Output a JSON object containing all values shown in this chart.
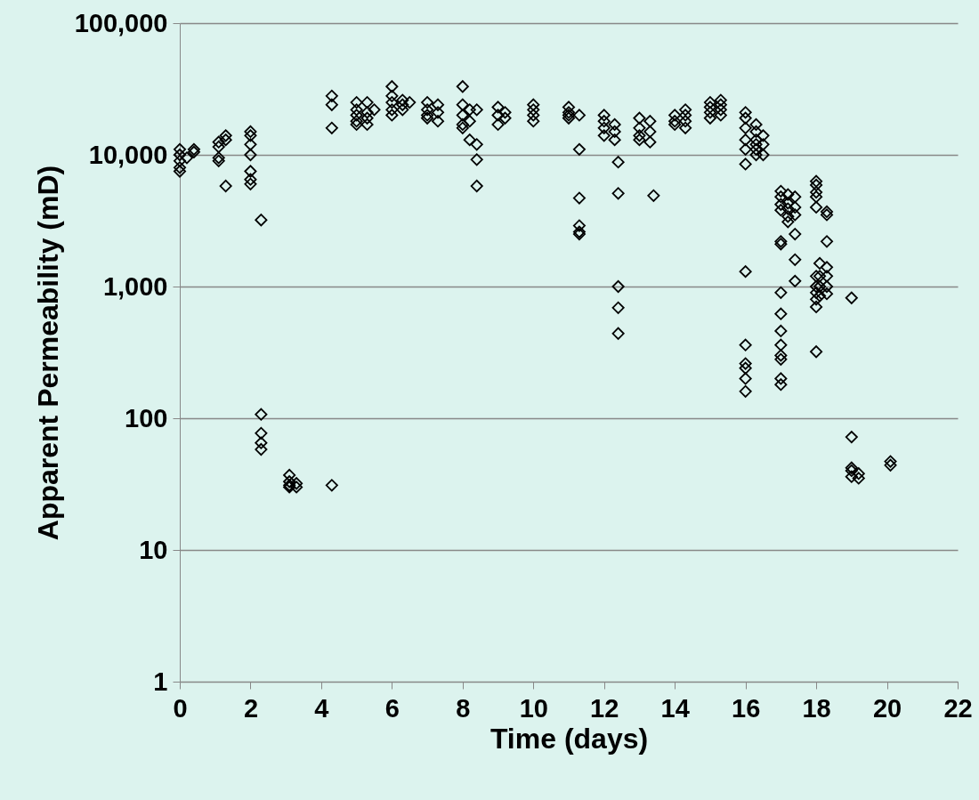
{
  "chart_data": {
    "type": "scatter",
    "xlabel": "Time (days)",
    "ylabel": "Apparent Permeability (mD)",
    "log": "y",
    "grid": "y",
    "marker": "diamond",
    "color": "#000000",
    "xlim": [
      0,
      22
    ],
    "xticks": [
      0,
      2,
      4,
      6,
      8,
      10,
      12,
      14,
      16,
      18,
      20,
      22
    ],
    "ylim": [
      1,
      100000
    ],
    "yticks": [
      1,
      10,
      100,
      {
        "value": 1000,
        "label": "1,000"
      },
      {
        "value": 10000,
        "label": "10,000"
      },
      {
        "value": 100000,
        "label": "100,000"
      }
    ],
    "x": [
      0,
      0,
      0,
      0,
      0,
      0.2,
      0.4,
      0.4,
      1.1,
      1.1,
      1.1,
      1.1,
      1.3,
      1.3,
      1.3,
      2,
      2,
      2,
      2,
      2,
      2,
      2,
      2.3,
      2.3,
      2.3,
      2.3,
      2.3,
      3.1,
      3.1,
      3.1,
      3.1,
      3.3,
      3.3,
      4.3,
      4.3,
      4.3,
      4.3,
      5,
      5,
      5,
      5,
      5,
      5.3,
      5.3,
      5.3,
      5.3,
      5.5,
      6,
      6,
      6,
      6,
      6,
      6.3,
      6.3,
      6.3,
      6.5,
      7,
      7,
      7,
      7,
      7.3,
      7.3,
      7.3,
      8,
      8,
      8,
      8,
      8,
      8.2,
      8.2,
      8.2,
      8.4,
      8.4,
      8.4,
      8.4,
      9,
      9,
      9,
      9.2,
      9.2,
      10,
      10,
      10,
      10,
      11,
      11,
      11,
      11,
      11.3,
      11.3,
      11.3,
      11.3,
      11.3,
      11.3,
      12,
      12,
      12,
      12,
      12.3,
      12.3,
      12.3,
      12.4,
      12.4,
      12.4,
      12.4,
      12.4,
      13,
      13,
      13,
      13,
      13.3,
      13.3,
      13.3,
      13.4,
      14,
      14,
      14,
      14.3,
      14.3,
      14.3,
      14.3,
      15,
      15,
      15,
      15,
      15.3,
      15.3,
      15.3,
      15.3,
      16,
      16,
      16,
      16,
      16,
      16,
      16,
      16,
      16,
      16,
      16,
      16,
      16.3,
      16.3,
      16.3,
      16.3,
      16.3,
      16.3,
      16.5,
      16.5,
      16.5,
      17,
      17,
      17,
      17,
      17,
      17,
      17,
      17,
      17,
      17,
      17,
      17,
      17,
      17,
      17.2,
      17.2,
      17.2,
      17.2,
      17.2,
      17.4,
      17.4,
      17.4,
      17.4,
      17.4,
      17.4,
      18,
      18,
      18,
      18,
      18,
      18,
      18,
      18,
      18,
      18,
      18,
      18.1,
      18.1,
      18.1,
      18.1,
      18.3,
      18.3,
      18.3,
      18.3,
      18.3,
      18.3,
      18.3,
      19,
      19,
      19,
      19,
      19,
      19.2,
      19.2,
      20.1,
      20.1
    ],
    "values": [
      11000,
      10000,
      9000,
      8000,
      7500,
      9500,
      10500,
      11000,
      11500,
      12500,
      9000,
      9500,
      13000,
      14000,
      5800,
      15000,
      14000,
      12000,
      10000,
      7500,
      6500,
      6000,
      3200,
      107,
      77,
      65,
      58,
      37,
      33,
      31,
      30,
      32,
      30,
      31,
      28000,
      24000,
      16000,
      25000,
      22000,
      20000,
      18000,
      17000,
      25000,
      21000,
      19000,
      17000,
      22000,
      33000,
      28000,
      25000,
      22000,
      20000,
      26000,
      24000,
      22000,
      25000,
      25000,
      22000,
      20000,
      19000,
      24000,
      21000,
      18000,
      33000,
      24000,
      20000,
      17000,
      16000,
      22000,
      18000,
      13000,
      22000,
      12000,
      9200,
      5800,
      23000,
      20000,
      17000,
      21000,
      19000,
      24000,
      22000,
      20000,
      18000,
      23000,
      21000,
      20000,
      19000,
      20000,
      11000,
      4700,
      2900,
      2600,
      2500,
      20000,
      18000,
      16000,
      14000,
      17000,
      15000,
      13000,
      8800,
      5100,
      1000,
      690,
      440,
      19000,
      16000,
      14000,
      13000,
      18000,
      15000,
      12500,
      4900,
      20000,
      18000,
      17000,
      22000,
      20000,
      18000,
      16000,
      25000,
      23000,
      21000,
      19000,
      26000,
      24000,
      22000,
      20000,
      21000,
      19000,
      16000,
      13000,
      11000,
      8500,
      1300,
      360,
      260,
      240,
      200,
      160,
      17000,
      15000,
      13000,
      12000,
      11000,
      10000,
      14000,
      12000,
      10000,
      5300,
      4800,
      4200,
      3800,
      2200,
      2100,
      900,
      620,
      460,
      360,
      300,
      280,
      200,
      180,
      5000,
      4300,
      3900,
      3400,
      3100,
      4800,
      4000,
      3500,
      2500,
      1600,
      1100,
      6300,
      5900,
      5200,
      4800,
      4000,
      1200,
      1000,
      900,
      800,
      700,
      320,
      1500,
      1200,
      1000,
      850,
      3700,
      3500,
      2200,
      1400,
      1200,
      1000,
      880,
      820,
      72,
      42,
      40,
      36,
      38,
      35,
      47,
      44
    ]
  }
}
